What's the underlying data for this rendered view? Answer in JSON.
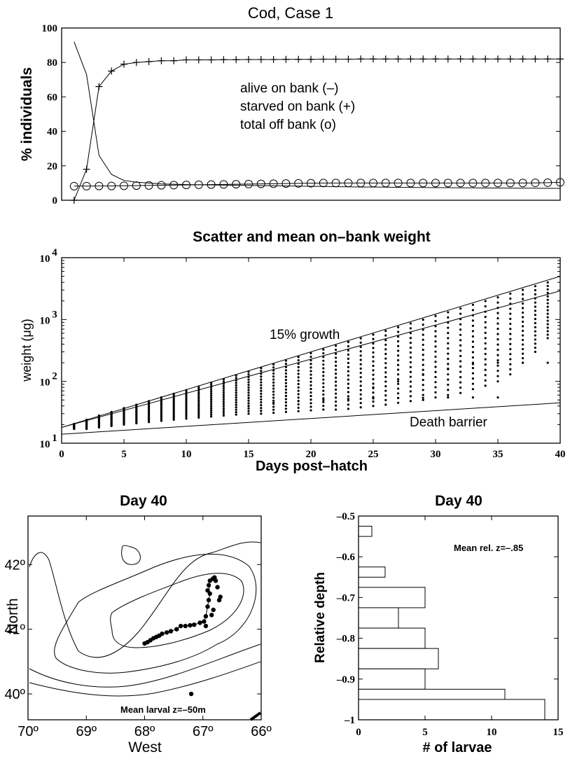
{
  "chart_data": [
    {
      "type": "line",
      "title": "Cod, Case 1",
      "xlabel": "",
      "ylabel": "% individuals",
      "xlim": [
        0,
        40
      ],
      "ylim": [
        0,
        100
      ],
      "x_ticks": [],
      "y_ticks": [
        0,
        20,
        40,
        60,
        80,
        100
      ],
      "annotations": [
        "alive on bank (–)",
        "starved on bank (+)",
        "total off bank (o)"
      ],
      "x": [
        1,
        2,
        3,
        4,
        5,
        6,
        7,
        8,
        9,
        10,
        11,
        12,
        13,
        14,
        15,
        16,
        17,
        18,
        19,
        20,
        21,
        22,
        23,
        24,
        25,
        26,
        27,
        28,
        29,
        30,
        31,
        32,
        33,
        34,
        35,
        36,
        37,
        38,
        39,
        40
      ],
      "series": [
        {
          "marker": "none",
          "values": [
            92,
            73,
            26,
            15,
            11.5,
            10.5,
            10,
            9.5,
            9.3,
            9.1,
            9,
            8.9,
            8.8,
            8.7,
            8.6,
            8.5,
            8.4,
            8.3,
            8.2,
            8.1,
            8,
            7.9,
            7.8,
            7.7,
            7.7,
            7.6,
            7.5,
            7.5,
            7.4,
            7.3,
            7.3,
            7.2,
            7.2,
            7.1,
            7.1,
            7,
            7,
            7,
            6.9,
            6.9
          ]
        },
        {
          "marker": "plus",
          "values": [
            0,
            18,
            66,
            75,
            79,
            80,
            80.5,
            81,
            81,
            81.5,
            81.5,
            81.5,
            81.6,
            81.6,
            81.7,
            81.7,
            81.7,
            81.8,
            81.8,
            81.8,
            81.9,
            81.9,
            81.9,
            82,
            82,
            82,
            82,
            82,
            82,
            82,
            82,
            82,
            82,
            82,
            82,
            82,
            82,
            82,
            82,
            82
          ]
        },
        {
          "marker": "circle",
          "values": [
            8.2,
            8.2,
            8.3,
            8.3,
            8.4,
            8.5,
            8.6,
            8.7,
            8.8,
            8.9,
            9,
            9.1,
            9.2,
            9.3,
            9.4,
            9.5,
            9.6,
            9.7,
            9.8,
            9.9,
            10,
            10,
            10,
            10,
            10,
            10,
            10,
            10,
            10,
            10,
            10,
            10,
            10,
            10,
            10,
            10,
            10,
            10.1,
            10.2,
            10.4
          ]
        }
      ]
    },
    {
      "type": "scatter",
      "title": "Scatter and mean on–bank weight",
      "xlabel": "Days post–hatch",
      "ylabel": "weight (μg)",
      "y_scale": "log",
      "xlim": [
        0,
        40
      ],
      "ylim": [
        10,
        10000
      ],
      "x_ticks": [
        0,
        5,
        10,
        15,
        20,
        25,
        30,
        35,
        40
      ],
      "y_tick_exponents": [
        "1",
        "2",
        "3",
        "4"
      ],
      "y_tick_base": "10",
      "annotations": [
        "15% growth",
        "Death barrier"
      ],
      "lines": [
        {
          "label": "15% growth",
          "x": [
            0,
            40
          ],
          "y": [
            18,
            5000
          ]
        },
        {
          "label": "mean on-bank weight",
          "x": [
            0,
            40
          ],
          "y": [
            18,
            2900
          ]
        },
        {
          "label": "Death barrier",
          "x": [
            0,
            40
          ],
          "y": [
            14,
            45
          ]
        }
      ],
      "scatter_stats": {
        "days": [
          1,
          2,
          3,
          4,
          5,
          6,
          7,
          8,
          9,
          10,
          11,
          12,
          13,
          14,
          15,
          16,
          17,
          18,
          19,
          20,
          21,
          22,
          23,
          24,
          25,
          26,
          27,
          28,
          29,
          30,
          31,
          32,
          33,
          34,
          35,
          36,
          37,
          38,
          39
        ],
        "upper": [
          20.5,
          24,
          28,
          32,
          37,
          42,
          48,
          55,
          63,
          72,
          82,
          95,
          108,
          124,
          143,
          164,
          188,
          216,
          248,
          285,
          327,
          376,
          432,
          496,
          570,
          655,
          752,
          864,
          993,
          1141,
          1311,
          1506,
          1730,
          1988,
          2284,
          2624,
          3015,
          3464,
          3980
        ],
        "lower": [
          17,
          17,
          18,
          19,
          20,
          21,
          22,
          23,
          24,
          25,
          26,
          27,
          28,
          29,
          30,
          30,
          31,
          32,
          33,
          34,
          35,
          35,
          36,
          38,
          40,
          42,
          45,
          48,
          50,
          55,
          60,
          65,
          75,
          85,
          100,
          130,
          200,
          300,
          500
        ],
        "stragglers": [
          {
            "day": 15,
            "w": 40
          },
          {
            "day": 17,
            "w": 45
          },
          {
            "day": 19,
            "w": 48
          },
          {
            "day": 21,
            "w": 50
          },
          {
            "day": 23,
            "w": 52
          },
          {
            "day": 25,
            "w": 53
          },
          {
            "day": 27,
            "w": 54
          },
          {
            "day": 29,
            "w": 54
          },
          {
            "day": 31,
            "w": 55
          },
          {
            "day": 33,
            "w": 55
          },
          {
            "day": 35,
            "w": 55
          },
          {
            "day": 25,
            "w": 80
          },
          {
            "day": 27,
            "w": 100
          },
          {
            "day": 29,
            "w": 130
          },
          {
            "day": 31,
            "w": 160
          },
          {
            "day": 33,
            "w": 190
          },
          {
            "day": 35,
            "w": 200
          },
          {
            "day": 37,
            "w": 200
          },
          {
            "day": 39,
            "w": 200
          }
        ]
      }
    },
    {
      "type": "map",
      "title": "Day 40",
      "xlabel": "West",
      "ylabel": "North",
      "x_tick_labels": [
        "70º",
        "69º",
        "68º",
        "67º",
        "66º"
      ],
      "x_tick_values": [
        70,
        69,
        68,
        67,
        66
      ],
      "y_tick_labels": [
        "40º",
        "41º",
        "42º"
      ],
      "y_tick_values": [
        40,
        41,
        42
      ],
      "xlim": [
        70,
        66
      ],
      "ylim": [
        39.6,
        42.75
      ],
      "annotation": "Mean larval z=–50m",
      "larvae": [
        [
          68.0,
          40.78
        ],
        [
          67.95,
          40.8
        ],
        [
          67.9,
          40.83
        ],
        [
          67.85,
          40.86
        ],
        [
          67.8,
          40.88
        ],
        [
          67.75,
          40.9
        ],
        [
          67.7,
          40.93
        ],
        [
          67.62,
          40.95
        ],
        [
          67.55,
          40.97
        ],
        [
          67.45,
          41.0
        ],
        [
          67.38,
          41.05
        ],
        [
          67.3,
          41.05
        ],
        [
          67.22,
          41.06
        ],
        [
          67.15,
          41.07
        ],
        [
          67.05,
          41.1
        ],
        [
          66.98,
          41.12
        ],
        [
          66.95,
          41.2
        ],
        [
          66.92,
          41.35
        ],
        [
          66.9,
          41.45
        ],
        [
          66.88,
          41.55
        ],
        [
          66.9,
          41.68
        ],
        [
          66.88,
          41.75
        ],
        [
          66.83,
          41.78
        ],
        [
          66.8,
          41.8
        ],
        [
          66.78,
          41.75
        ],
        [
          66.75,
          41.65
        ],
        [
          66.7,
          41.5
        ],
        [
          66.82,
          41.3
        ],
        [
          66.85,
          41.22
        ],
        [
          66.95,
          41.05
        ],
        [
          67.2,
          40.0
        ],
        [
          66.72,
          41.45
        ],
        [
          66.92,
          41.6
        ]
      ]
    },
    {
      "type": "bar",
      "orientation": "horizontal",
      "title": "Day 40",
      "xlabel": "# of larvae",
      "ylabel": "Relative depth",
      "xlim": [
        0,
        15
      ],
      "ylim": [
        -1,
        -0.5
      ],
      "x_ticks": [
        0,
        5,
        10,
        15
      ],
      "y_tick_labels": [
        "–0.5",
        "–0.6",
        "–0.7",
        "–0.8",
        "–0.9",
        "–1"
      ],
      "y_tick_values": [
        -0.5,
        -0.6,
        -0.7,
        -0.8,
        -0.9,
        -1
      ],
      "annotation": "Mean rel. z=–.85",
      "bars": [
        {
          "y_low": -0.55,
          "y_high": -0.525,
          "count": 1
        },
        {
          "y_low": -0.65,
          "y_high": -0.625,
          "count": 2
        },
        {
          "y_low": -0.725,
          "y_high": -0.675,
          "count": 5
        },
        {
          "y_low": -0.775,
          "y_high": -0.725,
          "count": 3
        },
        {
          "y_low": -0.825,
          "y_high": -0.775,
          "count": 5
        },
        {
          "y_low": -0.875,
          "y_high": -0.825,
          "count": 6
        },
        {
          "y_low": -0.925,
          "y_high": -0.875,
          "count": 5
        },
        {
          "y_low": -0.975,
          "y_high": -0.925,
          "count": 11
        },
        {
          "y_low": -1.0,
          "y_high": -0.95,
          "count": 14
        }
      ]
    }
  ]
}
